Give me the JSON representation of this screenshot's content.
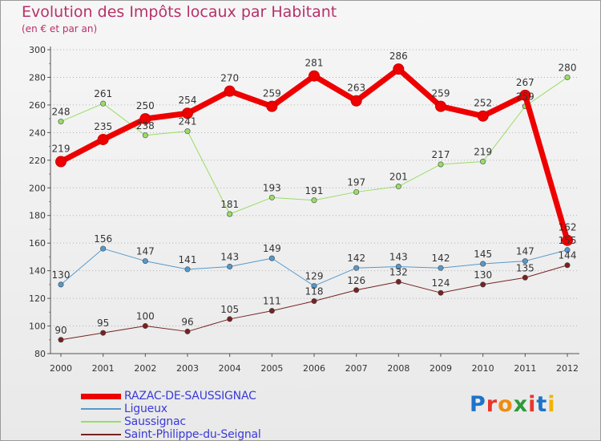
{
  "title": "Evolution des Impôts locaux par Habitant",
  "subtitle": "(en € et par an)",
  "brand": {
    "text": "Proxiti",
    "letters": [
      {
        "char": "P",
        "color": "#1e73c8"
      },
      {
        "char": "r",
        "color": "#e8362a"
      },
      {
        "char": "o",
        "color": "#f08c10"
      },
      {
        "char": "x",
        "color": "#2e9a3a"
      },
      {
        "char": "i",
        "color": "#e8362a"
      },
      {
        "char": "t",
        "color": "#1e73c8"
      },
      {
        "char": "i",
        "color": "#f0b400"
      }
    ]
  },
  "chart_data": {
    "type": "line",
    "title": "Evolution des Impôts locaux par Habitant",
    "subtitle": "(en € et par an)",
    "x": [
      "2000",
      "2001",
      "2002",
      "2003",
      "2004",
      "2005",
      "2006",
      "2007",
      "2008",
      "2009",
      "2010",
      "2011",
      "2012"
    ],
    "ylim": [
      80,
      300
    ],
    "yticks": [
      "80",
      "100",
      "120",
      "140",
      "160",
      "180",
      "200",
      "220",
      "240",
      "260",
      "280",
      "300"
    ],
    "grid": "horizontal-dotted",
    "legend_position": "bottom-left",
    "series": [
      {
        "name": "RAZAC-DE-SAUSSIGNAC",
        "color": "#ee0000",
        "width": 7,
        "values": [
          219,
          235,
          250,
          254,
          270,
          259,
          281,
          263,
          286,
          259,
          252,
          267,
          162
        ]
      },
      {
        "name": "Ligueux",
        "color": "#5599cc",
        "width": 1,
        "values": [
          130,
          156,
          147,
          141,
          143,
          149,
          129,
          142,
          143,
          142,
          145,
          147,
          155
        ]
      },
      {
        "name": "Saussignac",
        "color": "#99dd66",
        "width": 1,
        "values": [
          248,
          261,
          238,
          241,
          181,
          193,
          191,
          197,
          201,
          217,
          219,
          259,
          280
        ]
      },
      {
        "name": "Saint-Philippe-du-Seignal",
        "color": "#772222",
        "width": 1,
        "values": [
          90,
          95,
          100,
          96,
          105,
          111,
          118,
          126,
          132,
          124,
          130,
          135,
          144
        ]
      }
    ]
  }
}
